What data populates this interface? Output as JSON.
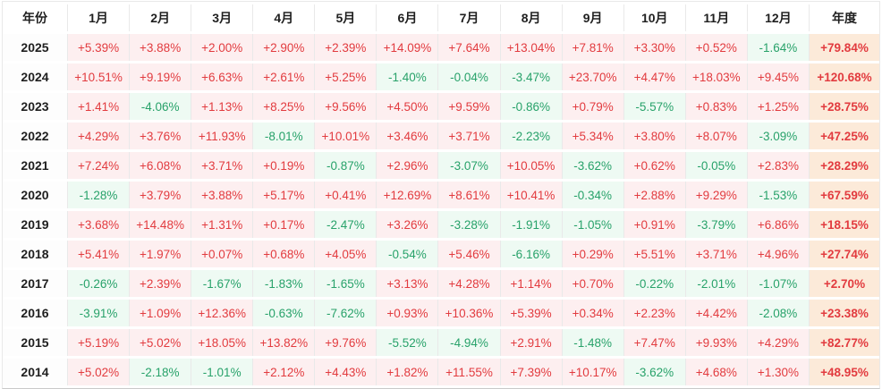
{
  "table": {
    "columns": [
      "年份",
      "1月",
      "2月",
      "3月",
      "4月",
      "5月",
      "6月",
      "7月",
      "8月",
      "9月",
      "10月",
      "11月",
      "12月",
      "年度"
    ],
    "rows": [
      {
        "year": "2025",
        "cells": [
          "+5.39%",
          "+3.88%",
          "+2.00%",
          "+2.90%",
          "+2.39%",
          "+14.09%",
          "+7.64%",
          "+13.04%",
          "+7.81%",
          "+3.30%",
          "+0.52%",
          "-1.64%"
        ],
        "annual": "+79.84%"
      },
      {
        "year": "2024",
        "cells": [
          "+10.51%",
          "+9.19%",
          "+6.63%",
          "+2.61%",
          "+5.25%",
          "-1.40%",
          "-0.04%",
          "-3.47%",
          "+23.70%",
          "+4.47%",
          "+18.03%",
          "+9.45%"
        ],
        "annual": "+120.68%"
      },
      {
        "year": "2023",
        "cells": [
          "+1.41%",
          "-4.06%",
          "+1.13%",
          "+8.25%",
          "+9.56%",
          "+4.50%",
          "+9.59%",
          "-0.86%",
          "+0.79%",
          "-5.57%",
          "+0.83%",
          "+1.25%"
        ],
        "annual": "+28.75%"
      },
      {
        "year": "2022",
        "cells": [
          "+4.29%",
          "+3.76%",
          "+11.93%",
          "-8.01%",
          "+10.01%",
          "+3.46%",
          "+3.71%",
          "-2.23%",
          "+5.34%",
          "+3.80%",
          "+8.07%",
          "-3.09%"
        ],
        "annual": "+47.25%"
      },
      {
        "year": "2021",
        "cells": [
          "+7.24%",
          "+6.08%",
          "+3.71%",
          "+0.19%",
          "-0.87%",
          "+2.96%",
          "-3.07%",
          "+10.05%",
          "-3.62%",
          "+0.62%",
          "-0.05%",
          "+2.83%"
        ],
        "annual": "+28.29%"
      },
      {
        "year": "2020",
        "cells": [
          "-1.28%",
          "+3.79%",
          "+3.88%",
          "+5.17%",
          "+0.41%",
          "+12.69%",
          "+8.61%",
          "+10.41%",
          "-0.34%",
          "+2.88%",
          "+9.29%",
          "-1.53%"
        ],
        "annual": "+67.59%"
      },
      {
        "year": "2019",
        "cells": [
          "+3.68%",
          "+14.48%",
          "+1.31%",
          "+0.17%",
          "-2.47%",
          "+3.26%",
          "-3.28%",
          "-1.91%",
          "-1.05%",
          "+0.91%",
          "-3.79%",
          "+6.86%"
        ],
        "annual": "+18.15%"
      },
      {
        "year": "2018",
        "cells": [
          "+5.41%",
          "+1.97%",
          "+0.07%",
          "+0.68%",
          "+4.05%",
          "-0.54%",
          "+5.46%",
          "-6.16%",
          "+0.29%",
          "+5.51%",
          "+3.71%",
          "+4.96%"
        ],
        "annual": "+27.74%"
      },
      {
        "year": "2017",
        "cells": [
          "-0.26%",
          "+2.39%",
          "-1.67%",
          "-1.83%",
          "-1.65%",
          "+3.13%",
          "+4.28%",
          "+1.14%",
          "+0.70%",
          "-0.22%",
          "-2.01%",
          "-1.07%"
        ],
        "annual": "+2.70%"
      },
      {
        "year": "2016",
        "cells": [
          "-3.91%",
          "+1.09%",
          "+12.36%",
          "-0.63%",
          "-7.62%",
          "+0.93%",
          "+10.36%",
          "+5.39%",
          "+0.34%",
          "+2.23%",
          "+4.42%",
          "-2.08%"
        ],
        "annual": "+23.38%"
      },
      {
        "year": "2015",
        "cells": [
          "+5.19%",
          "+5.02%",
          "+18.05%",
          "+13.82%",
          "+9.76%",
          "-5.52%",
          "-4.94%",
          "+2.91%",
          "-1.48%",
          "+7.47%",
          "+9.93%",
          "+4.29%"
        ],
        "annual": "+82.77%"
      },
      {
        "year": "2014",
        "cells": [
          "+5.02%",
          "-2.18%",
          "-1.01%",
          "+2.12%",
          "+4.43%",
          "+1.82%",
          "+11.55%",
          "+7.39%",
          "+10.17%",
          "-3.62%",
          "+4.68%",
          "+1.30%"
        ],
        "annual": "+48.95%"
      }
    ]
  },
  "colors": {
    "positive_text": "#e23b3f",
    "positive_bg": "#fdeff0",
    "negative_text": "#28a26a",
    "negative_bg": "#eefaf3",
    "annual_bg": "#fcead9",
    "header_text": "#1f1f1f",
    "border": "#e9e9e9"
  },
  "chart_data": {
    "type": "table",
    "columns": [
      "年份",
      "1月",
      "2月",
      "3月",
      "4月",
      "5月",
      "6月",
      "7月",
      "8月",
      "9月",
      "10月",
      "11月",
      "12月",
      "年度"
    ],
    "unit": "percent",
    "rows": [
      {
        "year": 2025,
        "monthly": [
          5.39,
          3.88,
          2.0,
          2.9,
          2.39,
          14.09,
          7.64,
          13.04,
          7.81,
          3.3,
          0.52,
          -1.64
        ],
        "annual": 79.84
      },
      {
        "year": 2024,
        "monthly": [
          10.51,
          9.19,
          6.63,
          2.61,
          5.25,
          -1.4,
          -0.04,
          -3.47,
          23.7,
          4.47,
          18.03,
          9.45
        ],
        "annual": 120.68
      },
      {
        "year": 2023,
        "monthly": [
          1.41,
          -4.06,
          1.13,
          8.25,
          9.56,
          4.5,
          9.59,
          -0.86,
          0.79,
          -5.57,
          0.83,
          1.25
        ],
        "annual": 28.75
      },
      {
        "year": 2022,
        "monthly": [
          4.29,
          3.76,
          11.93,
          -8.01,
          10.01,
          3.46,
          3.71,
          -2.23,
          5.34,
          3.8,
          8.07,
          -3.09
        ],
        "annual": 47.25
      },
      {
        "year": 2021,
        "monthly": [
          7.24,
          6.08,
          3.71,
          0.19,
          -0.87,
          2.96,
          -3.07,
          10.05,
          -3.62,
          0.62,
          -0.05,
          2.83
        ],
        "annual": 28.29
      },
      {
        "year": 2020,
        "monthly": [
          -1.28,
          3.79,
          3.88,
          5.17,
          0.41,
          12.69,
          8.61,
          10.41,
          -0.34,
          2.88,
          9.29,
          -1.53
        ],
        "annual": 67.59
      },
      {
        "year": 2019,
        "monthly": [
          3.68,
          14.48,
          1.31,
          0.17,
          -2.47,
          3.26,
          -3.28,
          -1.91,
          -1.05,
          0.91,
          -3.79,
          6.86
        ],
        "annual": 18.15
      },
      {
        "year": 2018,
        "monthly": [
          5.41,
          1.97,
          0.07,
          0.68,
          4.05,
          -0.54,
          5.46,
          -6.16,
          0.29,
          5.51,
          3.71,
          4.96
        ],
        "annual": 27.74
      },
      {
        "year": 2017,
        "monthly": [
          -0.26,
          2.39,
          -1.67,
          -1.83,
          -1.65,
          3.13,
          4.28,
          1.14,
          0.7,
          -0.22,
          -2.01,
          -1.07
        ],
        "annual": 2.7
      },
      {
        "year": 2016,
        "monthly": [
          -3.91,
          1.09,
          12.36,
          -0.63,
          -7.62,
          0.93,
          10.36,
          5.39,
          0.34,
          2.23,
          4.42,
          -2.08
        ],
        "annual": 23.38
      },
      {
        "year": 2015,
        "monthly": [
          5.19,
          5.02,
          18.05,
          13.82,
          9.76,
          -5.52,
          -4.94,
          2.91,
          -1.48,
          7.47,
          9.93,
          4.29
        ],
        "annual": 82.77
      },
      {
        "year": 2014,
        "monthly": [
          5.02,
          -2.18,
          -1.01,
          2.12,
          4.43,
          1.82,
          11.55,
          7.39,
          10.17,
          -3.62,
          4.68,
          1.3
        ],
        "annual": 48.95
      }
    ]
  }
}
